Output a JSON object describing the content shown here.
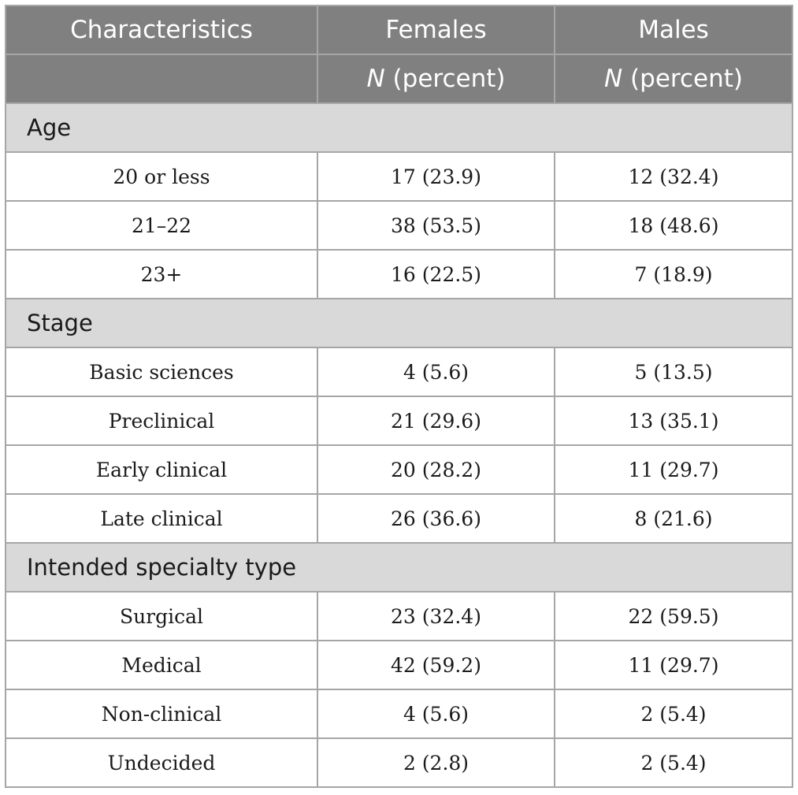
{
  "header": {
    "col_characteristics": "Characteristics",
    "col_females": "Females",
    "col_males": "Males",
    "sub_n": "N",
    "sub_percent": " (percent)"
  },
  "sections": [
    {
      "label": "Age",
      "rows": [
        {
          "label": "20 or less",
          "females": "17 (23.9)",
          "males": "12 (32.4)"
        },
        {
          "label": "21–22",
          "females": "38 (53.5)",
          "males": "18 (48.6)"
        },
        {
          "label": "23+",
          "females": "16 (22.5)",
          "males": "7 (18.9)"
        }
      ]
    },
    {
      "label": "Stage",
      "rows": [
        {
          "label": "Basic sciences",
          "females": "4 (5.6)",
          "males": "5 (13.5)"
        },
        {
          "label": "Preclinical",
          "females": "21 (29.6)",
          "males": "13 (35.1)"
        },
        {
          "label": "Early clinical",
          "females": "20 (28.2)",
          "males": "11 (29.7)"
        },
        {
          "label": "Late clinical",
          "females": "26 (36.6)",
          "males": "8 (21.6)"
        }
      ]
    },
    {
      "label": "Intended specialty type",
      "rows": [
        {
          "label": "Surgical",
          "females": "23 (32.4)",
          "males": "22 (59.5)"
        },
        {
          "label": "Medical",
          "females": "42 (59.2)",
          "males": "11 (29.7)"
        },
        {
          "label": "Non-clinical",
          "females": "4 (5.6)",
          "males": "2 (5.4)"
        },
        {
          "label": "Undecided",
          "females": "2 (2.8)",
          "males": "2 (5.4)"
        }
      ]
    }
  ]
}
